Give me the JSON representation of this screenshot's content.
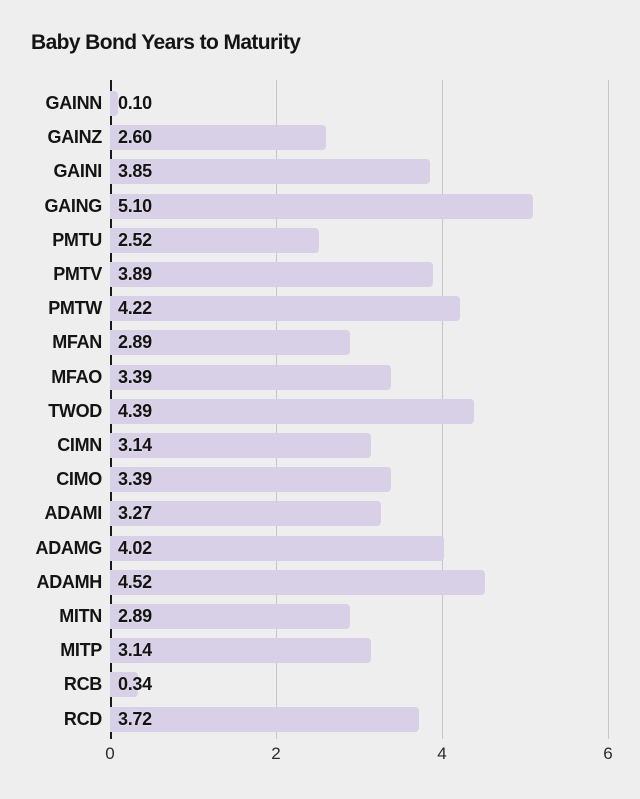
{
  "chart_data": {
    "type": "bar",
    "orientation": "horizontal",
    "title": "Baby Bond Years to Maturity",
    "categories": [
      "GAINN",
      "GAINZ",
      "GAINI",
      "GAING",
      "PMTU",
      "PMTV",
      "PMTW",
      "MFAN",
      "MFAO",
      "TWOD",
      "CIMN",
      "CIMO",
      "ADAMI",
      "ADAMG",
      "ADAMH",
      "MITN",
      "MITP",
      "RCB",
      "RCD"
    ],
    "values": [
      0.1,
      2.6,
      3.85,
      5.1,
      2.52,
      3.89,
      4.22,
      2.89,
      3.39,
      4.39,
      3.14,
      3.39,
      3.27,
      4.02,
      4.52,
      2.89,
      3.14,
      0.34,
      3.72
    ],
    "value_decimals": 2,
    "xlabel": "",
    "ylabel": "",
    "xlim": [
      0,
      6.4
    ],
    "x_ticks": [
      0,
      2,
      4,
      6
    ],
    "grid": "vertical-gridlines-at-ticks",
    "legend": "none",
    "colors": {
      "background": "#efeeef",
      "bar": "#d7d0e6",
      "gridline": "#c6c5c8",
      "axis": "#1a1a1a",
      "text": "#141414",
      "tick_text": "#2a2a2a"
    }
  }
}
